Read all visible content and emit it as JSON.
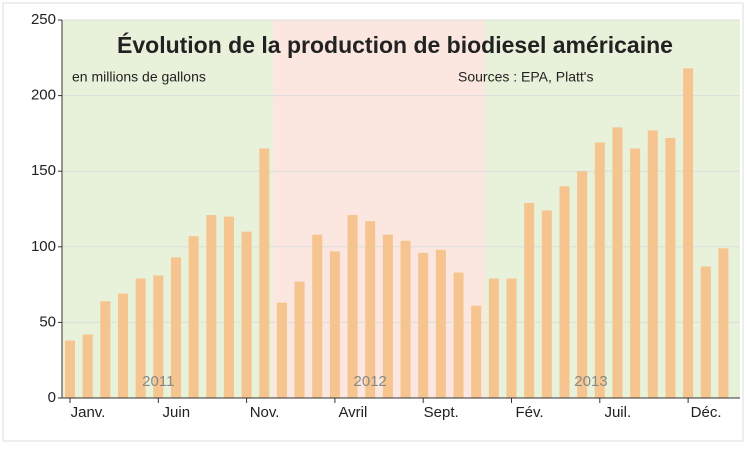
{
  "chart_data": {
    "type": "bar",
    "title": "Évolution de la production de biodiesel américaine",
    "subtitle": "en millions de gallons",
    "source": "Sources : EPA, Platt's",
    "annotations": [
      "2011",
      "2012",
      "2013"
    ],
    "categories": [
      "Janv.",
      null,
      null,
      null,
      null,
      "Juin",
      null,
      null,
      null,
      null,
      "Nov.",
      null,
      null,
      null,
      null,
      "Avril",
      null,
      null,
      null,
      null,
      "Sept.",
      null,
      null,
      null,
      null,
      "Fév.",
      null,
      null,
      null,
      null,
      "Juil.",
      null,
      null,
      null,
      null,
      "Déc.",
      null,
      null
    ],
    "values": [
      38,
      42,
      64,
      69,
      79,
      81,
      93,
      107,
      121,
      120,
      110,
      165,
      63,
      77,
      108,
      97,
      121,
      117,
      108,
      104,
      96,
      98,
      83,
      61,
      79,
      79,
      129,
      124,
      140,
      150,
      169,
      179,
      165,
      177,
      172,
      218,
      87,
      99
    ],
    "color": "#f5c48f",
    "ylim": [
      0,
      250
    ],
    "yticks": [
      0,
      50,
      100,
      150,
      200,
      250
    ],
    "grid": true
  }
}
